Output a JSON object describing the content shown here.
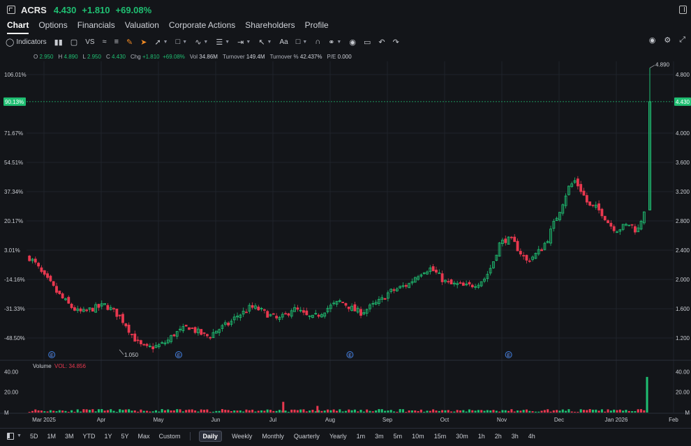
{
  "header": {
    "symbol": "ACRS",
    "last": "4.430",
    "change": "+1.810",
    "change_pct": "+69.08%",
    "icons": [
      "quote-icon",
      "collapse-panel-icon"
    ]
  },
  "tabs": [
    "Chart",
    "Options",
    "Financials",
    "Valuation",
    "Corporate Actions",
    "Shareholders",
    "Profile"
  ],
  "active_tab": "Chart",
  "toolbar": {
    "indicators_label": "Indicators",
    "vs_label": "VS",
    "text_label": "Aa"
  },
  "ohlc": {
    "o_label": "O",
    "o": "2.950",
    "h_label": "H",
    "h": "4.890",
    "l_label": "L",
    "l": "2.950",
    "c_label": "C",
    "c": "4.430",
    "chg_label": "Chg",
    "chg": "+1.810",
    "chg_pct": "+69.08%",
    "vol_label": "Vol",
    "vol": "34.86M",
    "turnover_label": "Turnover",
    "turnover": "149.4M",
    "turnover_pct_label": "Turnover %",
    "turnover_pct": "42.437%",
    "pe_label": "P/E",
    "pe": "0.000"
  },
  "colors": {
    "up": "#1fbf72",
    "down": "#e8384f",
    "background": "#131519",
    "grid": "#1f232b",
    "price_line": "#1fbf72"
  },
  "chart_data": {
    "type": "candlestick",
    "left_axis_labels": [
      "106.01%",
      "71.67%",
      "54.51%",
      "37.34%",
      "20.17%",
      "3.01%",
      "-14.16%",
      "-31.33%",
      "-48.50%"
    ],
    "right_axis_labels": [
      "4.800",
      "4.000",
      "3.600",
      "3.200",
      "2.800",
      "2.400",
      "2.000",
      "1.600",
      "1.200"
    ],
    "right_axis_values": [
      4.8,
      4.0,
      3.6,
      3.2,
      2.8,
      2.4,
      2.0,
      1.6,
      1.2
    ],
    "last_price_left": "90.13%",
    "last_price_right": "4.430",
    "last_price": 4.43,
    "high_annotation": "4.890",
    "high_value": 4.89,
    "low_annotation": "1.050",
    "low_value": 1.05,
    "x_labels": [
      "Mar 2025",
      "Apr",
      "May",
      "Jun",
      "Jul",
      "Aug",
      "Sep",
      "Oct",
      "Nov",
      "Dec",
      "Jan 2026",
      "Feb"
    ],
    "earnings_marker": "E",
    "earnings_positions": [
      0.02,
      0.22,
      0.49,
      0.74
    ],
    "close_path": [
      2.3,
      2.2,
      2.05,
      1.95,
      1.82,
      1.72,
      1.63,
      1.56,
      1.55,
      1.6,
      1.62,
      1.65,
      1.58,
      1.5,
      1.38,
      1.22,
      1.1,
      1.06,
      1.08,
      1.1,
      1.16,
      1.26,
      1.3,
      1.36,
      1.3,
      1.25,
      1.22,
      1.3,
      1.35,
      1.4,
      1.5,
      1.55,
      1.62,
      1.6,
      1.55,
      1.5,
      1.45,
      1.5,
      1.6,
      1.57,
      1.5,
      1.47,
      1.53,
      1.6,
      1.65,
      1.7,
      1.65,
      1.58,
      1.55,
      1.6,
      1.66,
      1.72,
      1.82,
      1.86,
      1.9,
      1.94,
      2.05,
      2.12,
      2.15,
      2.08,
      1.98,
      1.93,
      1.93,
      1.9,
      1.92,
      1.96,
      2.02,
      2.2,
      2.48,
      2.55,
      2.52,
      2.38,
      2.25,
      2.32,
      2.4,
      2.55,
      2.78,
      3.0,
      3.25,
      3.35,
      3.2,
      3.0,
      2.98,
      2.9,
      2.75,
      2.68,
      2.72,
      2.76,
      2.65,
      2.95,
      4.43
    ],
    "volume": {
      "label": "Volume",
      "vol_label": "VOL:",
      "vol_value": "34.856",
      "axis_labels": [
        "40.00",
        "20.00",
        "M"
      ],
      "axis_values": [
        40,
        20,
        0
      ],
      "spikes": [
        {
          "pos": 0.41,
          "value": 10.5
        },
        {
          "pos": 0.465,
          "value": 6.5
        },
        {
          "pos": 0.995,
          "value": 34.856
        }
      ]
    }
  },
  "bottombar": {
    "ranges": [
      "5D",
      "1M",
      "3M",
      "YTD",
      "1Y",
      "5Y",
      "Max",
      "Custom"
    ],
    "periods": [
      "Daily",
      "Weekly",
      "Monthly",
      "Quarterly",
      "Yearly",
      "1m",
      "3m",
      "5m",
      "10m",
      "15m",
      "30m",
      "1h",
      "2h",
      "3h",
      "4h"
    ],
    "active_period": "Daily"
  }
}
